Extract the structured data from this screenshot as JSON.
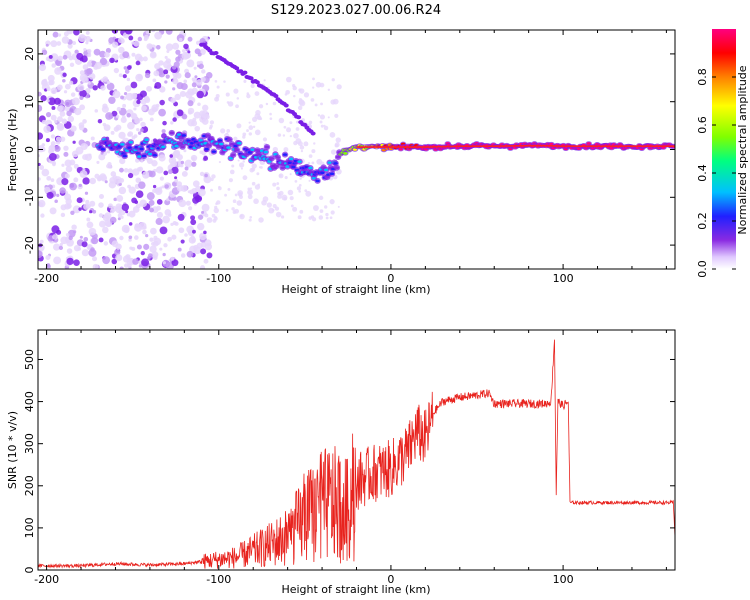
{
  "figure": {
    "title": "S129.2023.027.00.06.R24"
  },
  "chart_data": [
    {
      "type": "heatmap",
      "xlabel": "Height of straight line (km)",
      "ylabel": "Frequency (Hz)",
      "xlim": [
        -205,
        165
      ],
      "ylim": [
        -25,
        25
      ],
      "x_ticks": [
        -200,
        -100,
        0,
        100
      ],
      "x_tick_labels": [
        "-200",
        "-100",
        "0",
        "100"
      ],
      "y_ticks": [
        -20,
        -10,
        0,
        10,
        20
      ],
      "y_tick_labels": [
        "-20",
        "-10",
        "0",
        "10",
        "20"
      ],
      "colorbar": {
        "label": "Normalized spectral amplitude",
        "range": [
          0,
          1
        ],
        "ticks": [
          0.0,
          0.2,
          0.4,
          0.6,
          0.8
        ],
        "tick_labels": [
          "0.0",
          "0.2",
          "0.4",
          "0.6",
          "0.8"
        ],
        "colormap": [
          "#ffffff",
          "#e0c8ff",
          "#8a2be2",
          "#2020ff",
          "#00c0ff",
          "#00ff80",
          "#80ff00",
          "#ffff00",
          "#ff8000",
          "#ff0000",
          "#ff0080"
        ]
      },
      "carrier_track": [
        {
          "x": -170,
          "y": 1
        },
        {
          "x": -150,
          "y": 0
        },
        {
          "x": -120,
          "y": 2
        },
        {
          "x": -100,
          "y": 1
        },
        {
          "x": -80,
          "y": -1
        },
        {
          "x": -60,
          "y": -3
        },
        {
          "x": -45,
          "y": -5
        },
        {
          "x": -35,
          "y": -4
        },
        {
          "x": -30,
          "y": -1
        },
        {
          "x": -20,
          "y": 0.5
        },
        {
          "x": -10,
          "y": 0.5
        },
        {
          "x": 0,
          "y": 0.5
        },
        {
          "x": 20,
          "y": 0.5
        },
        {
          "x": 40,
          "y": 0.7
        },
        {
          "x": 60,
          "y": 0.7
        },
        {
          "x": 80,
          "y": 0.8
        },
        {
          "x": 90,
          "y": 0.8
        },
        {
          "x": 100,
          "y": 0.7
        },
        {
          "x": 120,
          "y": 0.7
        },
        {
          "x": 140,
          "y": 0.7
        },
        {
          "x": 165,
          "y": 0.7
        }
      ],
      "ghost_track": [
        {
          "x": -110,
          "y": 22
        },
        {
          "x": -90,
          "y": 17
        },
        {
          "x": -70,
          "y": 12
        },
        {
          "x": -55,
          "y": 7
        },
        {
          "x": -45,
          "y": 3
        }
      ]
    },
    {
      "type": "line",
      "xlabel": "Height of straight line (km)",
      "ylabel": "SNR (10 * v/v)",
      "xlim": [
        -205,
        165
      ],
      "ylim": [
        0,
        570
      ],
      "x_ticks": [
        -200,
        -100,
        0,
        100
      ],
      "x_tick_labels": [
        "-200",
        "-100",
        "0",
        "100"
      ],
      "y_ticks": [
        0,
        100,
        200,
        300,
        400,
        500
      ],
      "y_tick_labels": [
        "0",
        "100",
        "200",
        "300",
        "400",
        "500"
      ],
      "series": [
        {
          "color": "#e8231e",
          "points": [
            {
              "x": -205,
              "y": 10
            },
            {
              "x": -180,
              "y": 10
            },
            {
              "x": -160,
              "y": 15
            },
            {
              "x": -140,
              "y": 12
            },
            {
              "x": -120,
              "y": 15
            },
            {
              "x": -100,
              "y": 25
            },
            {
              "x": -90,
              "y": 30
            },
            {
              "x": -80,
              "y": 45
            },
            {
              "x": -70,
              "y": 60
            },
            {
              "x": -60,
              "y": 80
            },
            {
              "x": -50,
              "y": 120
            },
            {
              "x": -40,
              "y": 150
            },
            {
              "x": -35,
              "y": 160
            },
            {
              "x": -30,
              "y": 150
            },
            {
              "x": -25,
              "y": 140
            },
            {
              "x": -20,
              "y": 210
            },
            {
              "x": -10,
              "y": 230
            },
            {
              "x": 0,
              "y": 240
            },
            {
              "x": 5,
              "y": 260
            },
            {
              "x": 10,
              "y": 280
            },
            {
              "x": 15,
              "y": 330
            },
            {
              "x": 20,
              "y": 310
            },
            {
              "x": 25,
              "y": 375
            },
            {
              "x": 30,
              "y": 400
            },
            {
              "x": 40,
              "y": 410
            },
            {
              "x": 50,
              "y": 415
            },
            {
              "x": 57,
              "y": 420
            },
            {
              "x": 60,
              "y": 395
            },
            {
              "x": 70,
              "y": 395
            },
            {
              "x": 80,
              "y": 395
            },
            {
              "x": 90,
              "y": 395
            },
            {
              "x": 93,
              "y": 400
            },
            {
              "x": 95,
              "y": 550
            },
            {
              "x": 96,
              "y": 180
            },
            {
              "x": 97,
              "y": 400
            },
            {
              "x": 100,
              "y": 390
            },
            {
              "x": 103,
              "y": 400
            },
            {
              "x": 104,
              "y": 160
            },
            {
              "x": 120,
              "y": 160
            },
            {
              "x": 140,
              "y": 160
            },
            {
              "x": 160,
              "y": 160
            },
            {
              "x": 164,
              "y": 160
            },
            {
              "x": 165,
              "y": 80
            }
          ]
        }
      ]
    }
  ]
}
